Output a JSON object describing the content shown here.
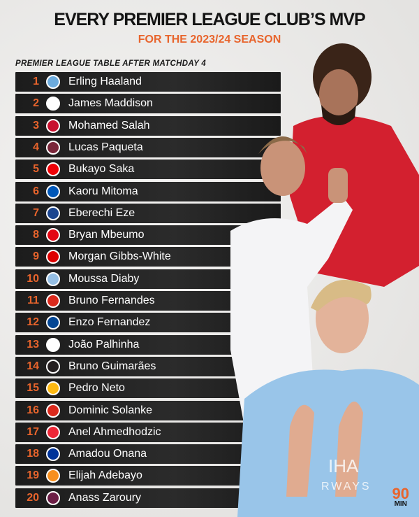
{
  "header": {
    "title": "EVERY PREMIER LEAGUE CLUB’S MVP",
    "subtitle": "FOR THE 2023/24 SEASON",
    "table_label": "PREMIER LEAGUE TABLE AFTER MATCHDAY 4"
  },
  "colors": {
    "accent": "#e8642c",
    "row_bg": "#1f1f1f"
  },
  "rows": [
    {
      "pos": "1",
      "player": "Erling Haaland",
      "badge": "man-city-badge-icon",
      "color": "#6cabdd"
    },
    {
      "pos": "2",
      "player": "James Maddison",
      "badge": "tottenham-badge-icon",
      "color": "#ffffff"
    },
    {
      "pos": "3",
      "player": "Mohamed Salah",
      "badge": "liverpool-badge-icon",
      "color": "#c8102e"
    },
    {
      "pos": "4",
      "player": "Lucas Paqueta",
      "badge": "west-ham-badge-icon",
      "color": "#7a263a"
    },
    {
      "pos": "5",
      "player": "Bukayo Saka",
      "badge": "arsenal-badge-icon",
      "color": "#ef0107"
    },
    {
      "pos": "6",
      "player": "Kaoru Mitoma",
      "badge": "brighton-badge-icon",
      "color": "#0057b8"
    },
    {
      "pos": "7",
      "player": "Eberechi Eze",
      "badge": "crystal-palace-badge-icon",
      "color": "#1b458f"
    },
    {
      "pos": "8",
      "player": "Bryan Mbeumo",
      "badge": "brentford-badge-icon",
      "color": "#e30613"
    },
    {
      "pos": "9",
      "player": "Morgan Gibbs-White",
      "badge": "nottingham-forest-badge-icon",
      "color": "#dd0000"
    },
    {
      "pos": "10",
      "player": "Moussa Diaby",
      "badge": "aston-villa-badge-icon",
      "color": "#95bfe5"
    },
    {
      "pos": "11",
      "player": "Bruno Fernandes",
      "badge": "man-united-badge-icon",
      "color": "#da291c"
    },
    {
      "pos": "12",
      "player": "Enzo Fernandez",
      "badge": "chelsea-badge-icon",
      "color": "#034694"
    },
    {
      "pos": "13",
      "player": "João Palhinha",
      "badge": "fulham-badge-icon",
      "color": "#ffffff"
    },
    {
      "pos": "14",
      "player": "Bruno Guimarães",
      "badge": "newcastle-badge-icon",
      "color": "#241f20"
    },
    {
      "pos": "15",
      "player": "Pedro Neto",
      "badge": "wolves-badge-icon",
      "color": "#fdb913"
    },
    {
      "pos": "16",
      "player": "Dominic Solanke",
      "badge": "bournemouth-badge-icon",
      "color": "#da291c"
    },
    {
      "pos": "17",
      "player": "Anel Ahmedhodzic",
      "badge": "sheffield-united-badge-icon",
      "color": "#ee2737"
    },
    {
      "pos": "18",
      "player": "Amadou Onana",
      "badge": "everton-badge-icon",
      "color": "#003399"
    },
    {
      "pos": "19",
      "player": "Elijah Adebayo",
      "badge": "luton-badge-icon",
      "color": "#f78f1e"
    },
    {
      "pos": "20",
      "player": "Anass Zaroury",
      "badge": "burnley-badge-icon",
      "color": "#6c1d45"
    }
  ],
  "logo": {
    "top": "90",
    "bottom": "MIN"
  }
}
